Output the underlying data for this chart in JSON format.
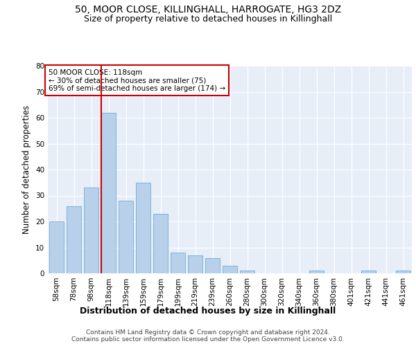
{
  "title1": "50, MOOR CLOSE, KILLINGHALL, HARROGATE, HG3 2DZ",
  "title2": "Size of property relative to detached houses in Killinghall",
  "xlabel": "Distribution of detached houses by size in Killinghall",
  "ylabel": "Number of detached properties",
  "categories": [
    "58sqm",
    "78sqm",
    "98sqm",
    "118sqm",
    "139sqm",
    "159sqm",
    "179sqm",
    "199sqm",
    "219sqm",
    "239sqm",
    "260sqm",
    "280sqm",
    "300sqm",
    "320sqm",
    "340sqm",
    "360sqm",
    "380sqm",
    "401sqm",
    "421sqm",
    "441sqm",
    "461sqm"
  ],
  "values": [
    20,
    26,
    33,
    62,
    28,
    35,
    23,
    8,
    7,
    6,
    3,
    1,
    0,
    0,
    0,
    1,
    0,
    0,
    1,
    0,
    1
  ],
  "bar_color": "#b8d0ea",
  "bar_edge_color": "#6baed6",
  "background_color": "#e8eef8",
  "grid_color": "#ffffff",
  "annotation_box_text": "50 MOOR CLOSE: 118sqm\n← 30% of detached houses are smaller (75)\n69% of semi-detached houses are larger (174) →",
  "annotation_box_color": "#ffffff",
  "annotation_box_edge_color": "#cc0000",
  "vline_bar_index": 3,
  "vline_color": "#cc0000",
  "ylim": [
    0,
    80
  ],
  "yticks": [
    0,
    10,
    20,
    30,
    40,
    50,
    60,
    70,
    80
  ],
  "footer_text": "Contains HM Land Registry data © Crown copyright and database right 2024.\nContains public sector information licensed under the Open Government Licence v3.0.",
  "title1_fontsize": 10,
  "title2_fontsize": 9,
  "xlabel_fontsize": 9,
  "ylabel_fontsize": 8.5,
  "tick_fontsize": 7.5,
  "ann_fontsize": 7.5,
  "footer_fontsize": 6.5
}
